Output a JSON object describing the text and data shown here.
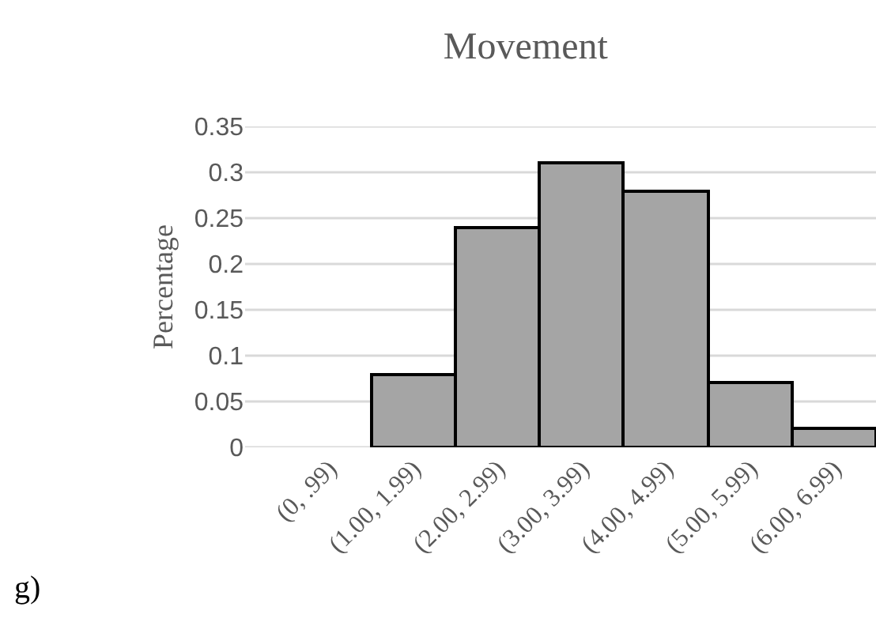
{
  "chart_data": {
    "type": "bar",
    "title": "Movement",
    "ylabel": "Percentage",
    "categories": [
      "(0, .99)",
      "(1.00, 1.99)",
      "(2.00, 2.99)",
      "(3.00, 3.99)",
      "(4.00, 4.99)",
      "(5.00, 5.99)",
      "(6.00, 6.99)"
    ],
    "values": [
      0,
      0.08,
      0.24,
      0.31,
      0.28,
      0.07,
      0.02
    ],
    "color": "#a5a5a5",
    "ylim": [
      0,
      0.35
    ],
    "yticks": [
      0,
      0.05,
      0.1,
      0.15,
      0.2,
      0.25,
      0.3,
      0.35
    ],
    "grid": "y",
    "annotations": [
      "g)"
    ]
  }
}
